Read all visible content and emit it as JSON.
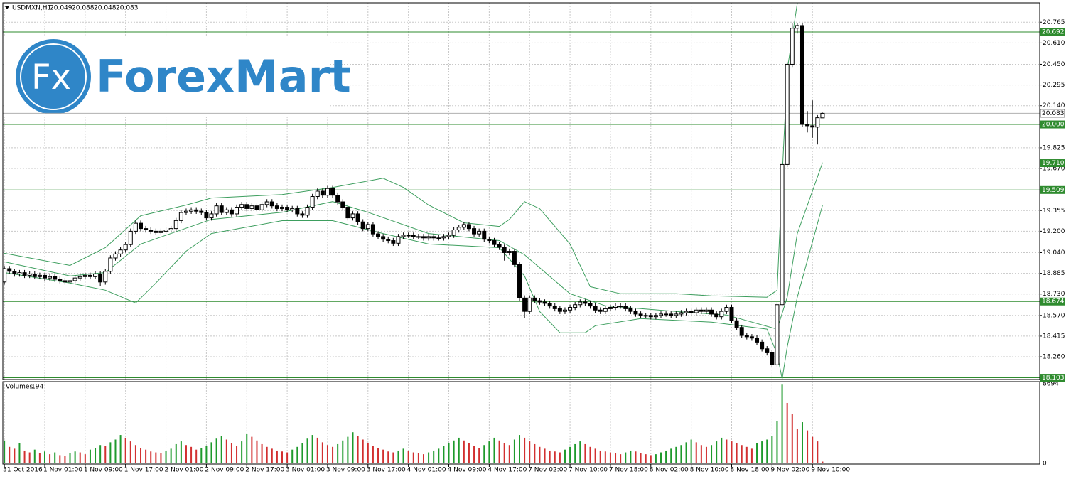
{
  "header": {
    "symbol": "USDMXN,H1"
  },
  "logo": {
    "icon": "Fx",
    "text": "ForexMart",
    "color": "#2f86c8"
  },
  "chart_data": {
    "type": "candlestick",
    "xlim": [
      -0.3,
      205
    ],
    "ylim": [
      18.09,
      20.91
    ],
    "grid": true,
    "up_fill": "#ffffff",
    "down_fill": "#000000",
    "candle_color": "#000000",
    "xticks": [
      {
        "value": 0,
        "label": "31 Oct 2016"
      },
      {
        "value": 8,
        "label": "1 Nov 01:00"
      },
      {
        "value": 16,
        "label": "1 Nov 09:00"
      },
      {
        "value": 24,
        "label": "1 Nov 17:00"
      },
      {
        "value": 32,
        "label": "2 Nov 01:00"
      },
      {
        "value": 40,
        "label": "2 Nov 09:00"
      },
      {
        "value": 48,
        "label": "2 Nov 17:00"
      },
      {
        "value": 56,
        "label": "3 Nov 01:00"
      },
      {
        "value": 64,
        "label": "3 Nov 09:00"
      },
      {
        "value": 72,
        "label": "3 Nov 17:00"
      },
      {
        "value": 80,
        "label": "4 Nov 01:00"
      },
      {
        "value": 88,
        "label": "4 Nov 09:00"
      },
      {
        "value": 96,
        "label": "4 Nov 17:00"
      },
      {
        "value": 104,
        "label": "7 Nov 02:00"
      },
      {
        "value": 112,
        "label": "7 Nov 10:00"
      },
      {
        "value": 120,
        "label": "7 Nov 18:00"
      },
      {
        "value": 128,
        "label": "8 Nov 02:00"
      },
      {
        "value": 136,
        "label": "8 Nov 10:00"
      },
      {
        "value": 144,
        "label": "8 Nov 18:00"
      },
      {
        "value": 152,
        "label": "9 Nov 02:00"
      },
      {
        "value": 160,
        "label": "9 Nov 10:00"
      }
    ],
    "yticks": [
      20.765,
      {
        "value": 20.61,
        "label": "20.610"
      },
      {
        "value": 20.45,
        "label": "20.450"
      },
      20.295,
      {
        "value": 20.14,
        "label": "20.140"
      },
      19.825,
      {
        "value": 19.67,
        "label": "19.670"
      },
      19.355,
      {
        "value": 19.2,
        "label": "19.200"
      },
      {
        "value": 19.04,
        "label": "19.040"
      },
      18.885,
      {
        "value": 18.73,
        "label": "18.730"
      },
      {
        "value": 18.57,
        "label": "18.570"
      },
      18.415,
      {
        "value": 18.26,
        "label": "18.260"
      }
    ],
    "levels": [
      20.692,
      {
        "value": 20,
        "label": "20.000"
      },
      {
        "value": 19.71,
        "label": "19.710"
      },
      19.509,
      18.674,
      18.103
    ],
    "level_color": "#2e8b2e",
    "price_line_color": "#b0b0b0",
    "band_color": "#3d9e5e",
    "open": [
      18.82,
      18.92,
      18.9,
      18.88,
      18.89,
      18.87,
      18.88,
      18.86,
      18.87,
      18.85,
      18.86,
      18.84,
      18.83,
      18.82,
      18.83,
      18.85,
      18.86,
      18.87,
      18.86,
      18.88,
      18.82,
      18.9,
      19.0,
      19.03,
      19.06,
      19.1,
      19.2,
      19.26,
      19.22,
      19.21,
      19.2,
      19.19,
      19.2,
      19.21,
      19.22,
      19.28,
      19.34,
      19.35,
      19.36,
      19.35,
      19.34,
      19.3,
      19.33,
      19.39,
      19.34,
      19.36,
      19.33,
      19.38,
      19.4,
      19.37,
      19.39,
      19.36,
      19.4,
      19.42,
      19.39,
      19.37,
      19.38,
      19.36,
      19.37,
      19.33,
      19.32,
      19.38,
      19.46,
      19.5,
      19.47,
      19.52,
      19.47,
      19.42,
      19.38,
      19.3,
      19.33,
      19.27,
      19.22,
      19.25,
      19.18,
      19.16,
      19.14,
      19.13,
      19.11,
      19.16,
      19.17,
      19.17,
      19.16,
      19.16,
      19.15,
      19.16,
      19.15,
      19.15,
      19.16,
      19.17,
      19.21,
      19.23,
      19.25,
      19.22,
      19.18,
      19.2,
      19.14,
      19.13,
      19.1,
      19.08,
      19.04,
      19.05,
      18.95,
      18.7,
      18.6,
      18.7,
      18.68,
      18.67,
      18.66,
      18.64,
      18.62,
      18.6,
      18.61,
      18.63,
      18.65,
      18.67,
      18.66,
      18.64,
      18.61,
      18.6,
      18.62,
      18.63,
      18.64,
      18.64,
      18.62,
      18.6,
      18.58,
      18.57,
      18.57,
      18.56,
      18.57,
      18.58,
      18.58,
      18.57,
      18.58,
      18.59,
      18.6,
      18.59,
      18.61,
      18.6,
      18.61,
      18.58,
      18.56,
      18.6,
      18.63,
      18.53,
      18.48,
      18.42,
      18.41,
      18.4,
      18.37,
      18.32,
      18.29,
      18.2,
      18.65,
      19.7,
      20.45,
      20.72,
      20.74,
      20.0,
      19.99,
      19.98,
      20.049
    ],
    "high": [
      18.94,
      18.94,
      18.92,
      18.91,
      18.91,
      18.9,
      18.9,
      18.89,
      18.89,
      18.88,
      18.88,
      18.86,
      18.85,
      18.85,
      18.87,
      18.88,
      18.89,
      18.89,
      18.9,
      18.9,
      18.92,
      19.02,
      19.05,
      19.08,
      19.12,
      19.22,
      19.28,
      19.28,
      19.24,
      19.23,
      19.22,
      19.22,
      19.23,
      19.24,
      19.3,
      19.36,
      19.37,
      19.38,
      19.38,
      19.37,
      19.36,
      19.35,
      19.41,
      19.41,
      19.38,
      19.38,
      19.4,
      19.42,
      19.42,
      19.41,
      19.41,
      19.42,
      19.44,
      19.44,
      19.41,
      19.4,
      19.4,
      19.39,
      19.39,
      19.35,
      19.4,
      19.48,
      19.52,
      19.52,
      19.54,
      19.54,
      19.49,
      19.44,
      19.4,
      19.35,
      19.35,
      19.29,
      19.27,
      19.27,
      19.2,
      19.18,
      19.16,
      19.15,
      19.18,
      19.19,
      19.19,
      19.19,
      19.18,
      19.18,
      19.18,
      19.18,
      19.17,
      19.18,
      19.19,
      19.23,
      19.25,
      19.27,
      19.27,
      19.24,
      19.22,
      19.22,
      19.16,
      19.15,
      19.12,
      19.1,
      19.07,
      19.07,
      18.97,
      18.72,
      18.72,
      18.72,
      18.7,
      18.69,
      18.68,
      18.66,
      18.64,
      18.63,
      18.65,
      18.67,
      18.69,
      18.69,
      18.68,
      18.66,
      18.63,
      18.64,
      18.65,
      18.66,
      18.66,
      18.66,
      18.64,
      18.62,
      18.6,
      18.59,
      18.59,
      18.59,
      18.6,
      18.6,
      18.6,
      18.6,
      18.61,
      18.62,
      18.62,
      18.63,
      18.63,
      18.63,
      18.63,
      18.6,
      18.62,
      18.65,
      18.65,
      18.55,
      18.5,
      18.44,
      18.43,
      18.42,
      18.39,
      18.34,
      18.31,
      18.67,
      19.72,
      20.47,
      20.76,
      20.76,
      20.76,
      20.1,
      20.18,
      20.07,
      20.088
    ],
    "low": [
      18.8,
      18.88,
      18.86,
      18.86,
      18.85,
      18.85,
      18.84,
      18.84,
      18.83,
      18.83,
      18.82,
      18.81,
      18.8,
      18.8,
      18.81,
      18.83,
      18.84,
      18.84,
      18.84,
      18.79,
      18.8,
      18.88,
      18.98,
      19.01,
      19.04,
      19.08,
      19.18,
      19.2,
      19.19,
      19.18,
      19.17,
      19.17,
      19.18,
      19.19,
      19.2,
      19.26,
      19.32,
      19.33,
      19.33,
      19.32,
      19.28,
      19.28,
      19.31,
      19.32,
      19.32,
      19.31,
      19.31,
      19.36,
      19.35,
      19.35,
      19.34,
      19.34,
      19.38,
      19.37,
      19.35,
      19.35,
      19.34,
      19.34,
      19.31,
      19.3,
      19.3,
      19.36,
      19.44,
      19.45,
      19.45,
      19.45,
      19.4,
      19.36,
      19.28,
      19.28,
      19.25,
      19.2,
      19.2,
      19.16,
      19.14,
      19.12,
      19.11,
      19.09,
      19.09,
      19.14,
      19.15,
      19.14,
      19.14,
      19.13,
      19.13,
      19.13,
      19.13,
      19.13,
      19.14,
      19.15,
      19.19,
      19.21,
      19.2,
      19.16,
      19.16,
      19.12,
      19.11,
      19.08,
      19.06,
      18.98,
      19.02,
      18.93,
      18.68,
      18.55,
      18.58,
      18.66,
      18.65,
      18.64,
      18.62,
      18.6,
      18.58,
      18.58,
      18.59,
      18.61,
      18.63,
      18.64,
      18.62,
      18.59,
      18.58,
      18.58,
      18.6,
      18.61,
      18.62,
      18.6,
      18.58,
      18.56,
      18.55,
      18.55,
      18.54,
      18.54,
      18.55,
      18.56,
      18.55,
      18.55,
      18.56,
      18.57,
      18.57,
      18.57,
      18.58,
      18.58,
      18.56,
      18.54,
      18.54,
      18.58,
      18.51,
      18.46,
      18.4,
      18.39,
      18.38,
      18.35,
      18.3,
      18.27,
      18.18,
      18.18,
      18.63,
      19.68,
      20.43,
      20.68,
      19.98,
      19.94,
      19.9,
      19.85,
      20.048
    ],
    "close": [
      18.92,
      18.9,
      18.88,
      18.89,
      18.87,
      18.88,
      18.86,
      18.87,
      18.85,
      18.86,
      18.84,
      18.83,
      18.82,
      18.83,
      18.85,
      18.86,
      18.87,
      18.86,
      18.88,
      18.82,
      18.9,
      19.0,
      19.03,
      19.06,
      19.1,
      19.2,
      19.26,
      19.22,
      19.21,
      19.2,
      19.19,
      19.2,
      19.21,
      19.22,
      19.28,
      19.34,
      19.35,
      19.36,
      19.35,
      19.34,
      19.3,
      19.33,
      19.39,
      19.34,
      19.36,
      19.33,
      19.38,
      19.4,
      19.37,
      19.39,
      19.36,
      19.4,
      19.42,
      19.39,
      19.37,
      19.38,
      19.36,
      19.37,
      19.33,
      19.32,
      19.38,
      19.46,
      19.5,
      19.47,
      19.52,
      19.47,
      19.42,
      19.38,
      19.3,
      19.33,
      19.27,
      19.22,
      19.25,
      19.18,
      19.16,
      19.14,
      19.13,
      19.11,
      19.16,
      19.17,
      19.17,
      19.16,
      19.16,
      19.15,
      19.16,
      19.15,
      19.15,
      19.16,
      19.17,
      19.21,
      19.23,
      19.25,
      19.22,
      19.18,
      19.2,
      19.14,
      19.13,
      19.1,
      19.08,
      19.04,
      19.05,
      18.95,
      18.7,
      18.6,
      18.7,
      18.68,
      18.67,
      18.66,
      18.64,
      18.62,
      18.6,
      18.61,
      18.63,
      18.65,
      18.67,
      18.66,
      18.64,
      18.61,
      18.6,
      18.62,
      18.63,
      18.64,
      18.64,
      18.62,
      18.6,
      18.58,
      18.57,
      18.57,
      18.56,
      18.57,
      18.58,
      18.58,
      18.57,
      18.58,
      18.59,
      18.6,
      18.59,
      18.61,
      18.6,
      18.61,
      18.58,
      18.56,
      18.6,
      18.63,
      18.53,
      18.48,
      18.42,
      18.41,
      18.4,
      18.37,
      18.32,
      18.29,
      18.2,
      18.65,
      19.7,
      20.45,
      20.72,
      20.74,
      20.0,
      19.99,
      19.98,
      20.05,
      20.083
    ],
    "bands": [
      {
        "x": [
          0,
          13,
          20,
          27,
          36,
          41,
          55,
          65,
          75,
          79,
          84,
          91,
          98,
          100,
          103,
          106,
          112,
          116,
          122,
          133,
          140,
          151,
          153,
          154,
          155,
          157
        ],
        "values": [
          19.035,
          18.944,
          19.077,
          19.316,
          19.396,
          19.449,
          19.475,
          19.528,
          19.597,
          19.528,
          19.396,
          19.263,
          19.236,
          19.289,
          19.422,
          19.369,
          19.104,
          18.785,
          18.732,
          18.732,
          18.716,
          18.706,
          18.759,
          19.608,
          20.404,
          20.908
        ]
      },
      {
        "x": [
          0,
          13,
          20,
          27,
          41,
          55,
          65,
          72,
          84,
          98,
          103,
          112,
          119,
          133,
          143,
          153,
          155,
          157,
          162
        ],
        "values": [
          18.971,
          18.865,
          18.891,
          19.104,
          19.289,
          19.342,
          19.422,
          19.342,
          19.183,
          19.13,
          19.024,
          18.732,
          18.642,
          18.599,
          18.573,
          18.467,
          18.706,
          19.183,
          19.714
        ]
      },
      {
        "x": [
          0,
          13,
          20,
          26,
          30,
          36,
          41,
          55,
          65,
          75,
          84,
          98,
          103,
          106,
          110,
          115,
          117,
          126,
          140,
          151,
          153,
          154,
          155,
          157,
          162
        ],
        "values": [
          18.891,
          18.812,
          18.759,
          18.663,
          18.812,
          19.051,
          19.183,
          19.279,
          19.279,
          19.183,
          19.104,
          19.077,
          18.865,
          18.599,
          18.44,
          18.44,
          18.493,
          18.546,
          18.52,
          18.467,
          18.281,
          18.095,
          18.334,
          18.706,
          19.396
        ]
      }
    ],
    "volume": {
      "title": "Volumes",
      "ylim": [
        0,
        8694
      ],
      "yticks": [
        8694,
        0
      ],
      "up_color": "#1e9a2c",
      "down_color": "#d23030",
      "values": [
        2500,
        1800,
        1600,
        2200,
        1400,
        1200,
        1500,
        1100,
        1300,
        1000,
        1200,
        900,
        800,
        1100,
        1300,
        1200,
        1000,
        1500,
        1700,
        2000,
        1900,
        2300,
        2600,
        3100,
        2800,
        2400,
        2000,
        1700,
        1500,
        1300,
        1200,
        1100,
        1400,
        1600,
        2100,
        2400,
        2000,
        1800,
        1500,
        1700,
        1900,
        2300,
        2700,
        3000,
        2600,
        2200,
        1900,
        2400,
        3200,
        2900,
        2500,
        2100,
        1800,
        1600,
        1400,
        1300,
        1200,
        1500,
        1800,
        2200,
        2700,
        3100,
        2800,
        2300,
        2000,
        1800,
        2100,
        2500,
        2900,
        3400,
        3000,
        2600,
        2200,
        1900,
        1700,
        1500,
        1300,
        1200,
        1400,
        1600,
        1400,
        1200,
        1100,
        1000,
        1200,
        1400,
        1600,
        1900,
        2200,
        2500,
        2800,
        2500,
        2200,
        1900,
        1700,
        2000,
        2400,
        2800,
        2500,
        2200,
        2000,
        2600,
        3100,
        2800,
        2400,
        2100,
        1800,
        1600,
        1400,
        1300,
        1200,
        1500,
        1800,
        2100,
        2400,
        2100,
        1800,
        1600,
        1400,
        1300,
        1200,
        1100,
        1000,
        1200,
        1400,
        1300,
        1100,
        1000,
        900,
        1000,
        1200,
        1400,
        1600,
        1800,
        2000,
        2300,
        2600,
        2300,
        2000,
        1800,
        2000,
        2400,
        2800,
        2600,
        2400,
        2200,
        2000,
        1800,
        1600,
        2200,
        2400,
        2600,
        3000,
        4600,
        8600,
        6600,
        5400,
        3800,
        4500,
        3600,
        2900,
        2400,
        194
      ]
    }
  }
}
